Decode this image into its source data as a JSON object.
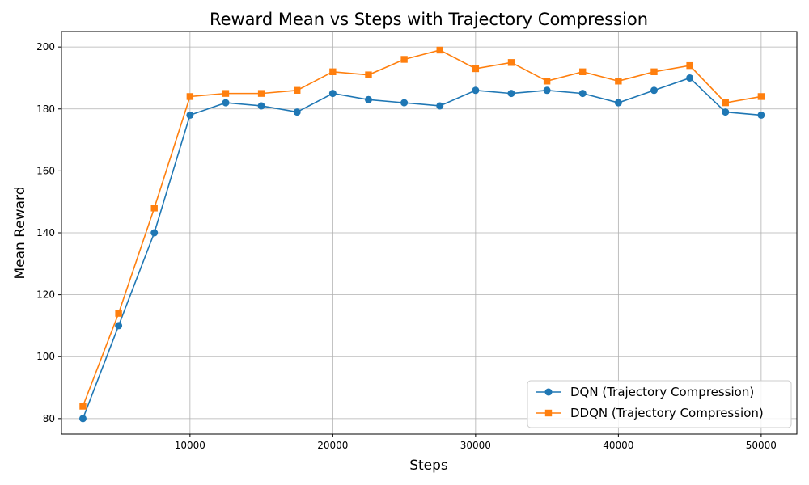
{
  "chart_data": {
    "type": "line",
    "title": "Reward Mean vs Steps with Trajectory Compression",
    "xlabel": "Steps",
    "ylabel": "Mean Reward",
    "xlim": [
      1000,
      52500
    ],
    "ylim": [
      75,
      205
    ],
    "xticks": [
      10000,
      20000,
      30000,
      40000,
      50000
    ],
    "yticks": [
      80,
      100,
      120,
      140,
      160,
      180,
      200
    ],
    "grid": true,
    "legend_position": "bottom-right",
    "x": [
      2500,
      5000,
      7500,
      10000,
      12500,
      15000,
      17500,
      20000,
      22500,
      25000,
      27500,
      30000,
      32500,
      35000,
      37500,
      40000,
      42500,
      45000,
      47500,
      50000
    ],
    "series": [
      {
        "name": "DQN (Trajectory Compression)",
        "color": "#1f77b4",
        "marker": "circle",
        "values": [
          80,
          110,
          140,
          178,
          182,
          181,
          179,
          185,
          183,
          182,
          181,
          186,
          185,
          186,
          185,
          182,
          186,
          190,
          179,
          178
        ]
      },
      {
        "name": "DDQN (Trajectory Compression)",
        "color": "#ff7f0e",
        "marker": "square",
        "values": [
          84,
          114,
          148,
          184,
          185,
          185,
          186,
          192,
          191,
          196,
          199,
          193,
          195,
          189,
          192,
          189,
          192,
          194,
          182,
          184
        ]
      }
    ]
  }
}
